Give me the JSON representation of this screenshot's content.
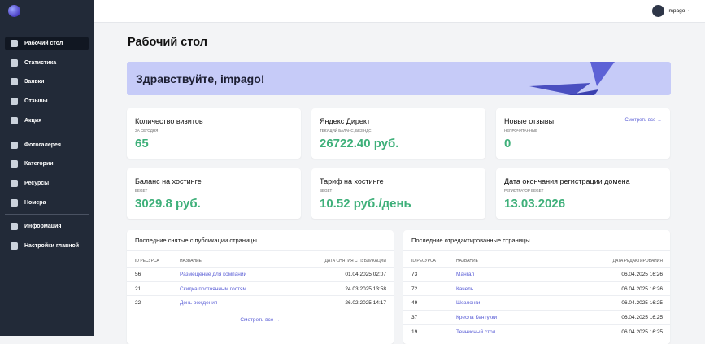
{
  "sidebar": {
    "menu": [
      [
        "Рабочий стол",
        "Статистика",
        "Заявки",
        "Отзывы",
        "Акция"
      ],
      [
        "Фотогалерея",
        "Категории",
        "Ресурсы",
        "Номера"
      ],
      [
        "Информация",
        "Настройки главной"
      ]
    ]
  },
  "header": {
    "user": "impago"
  },
  "page": {
    "title": "Рабочий стол",
    "banner": "Здравствуйте, impago!"
  },
  "cards": [
    {
      "title": "Количество визитов",
      "label": "ЗА СЕГОДНЯ",
      "value": "65"
    },
    {
      "title": "Яндекс Директ",
      "label": "ТЕКУЩИЙ БАЛАНС, БЕЗ НДС",
      "value": "26722.40 руб."
    },
    {
      "title": "Новые отзывы",
      "label": "НЕПРОЧИТАННЫЕ",
      "value": "0",
      "link": "Смотреть все →"
    },
    {
      "title": "Баланс на хостинге",
      "label": "BEGET",
      "value": "3029.8 руб."
    },
    {
      "title": "Тариф на хостинге",
      "label": "BEGET",
      "value": "10.52 руб./день"
    },
    {
      "title": "Дата окончания регистрации домена",
      "label": "РЕГИСТРАТОР BEGET",
      "value": "13.03.2026"
    }
  ],
  "tables": [
    {
      "title": "Последние снятые с публикации страницы",
      "columns": [
        "ID РЕСУРСА",
        "НАЗВАНИЕ",
        "ДАТА СНЯТИЯ С ПУБЛИКАЦИИ"
      ],
      "rows": [
        [
          "56",
          "Размещение для компании",
          "01.04.2025 02:07"
        ],
        [
          "21",
          "Скидка постоянным гостям",
          "24.03.2025 13:58"
        ],
        [
          "22",
          "День рождения",
          "26.02.2025 14:17"
        ]
      ],
      "link": "Смотреть все →"
    },
    {
      "title": "Последние отредактированные страницы",
      "columns": [
        "ID РЕСУРСА",
        "НАЗВАНИЕ",
        "ДАТА РЕДАКТИРОВАНИЯ"
      ],
      "rows": [
        [
          "73",
          "Мангал",
          "06.04.2025 16:26"
        ],
        [
          "72",
          "Качель",
          "06.04.2025 16:26"
        ],
        [
          "49",
          "Шезлонги",
          "06.04.2025 16:25"
        ],
        [
          "37",
          "Кресла Кентукки",
          "06.04.2025 16:25"
        ],
        [
          "19",
          "Теннисный стол",
          "06.04.2025 16:25"
        ]
      ]
    }
  ]
}
